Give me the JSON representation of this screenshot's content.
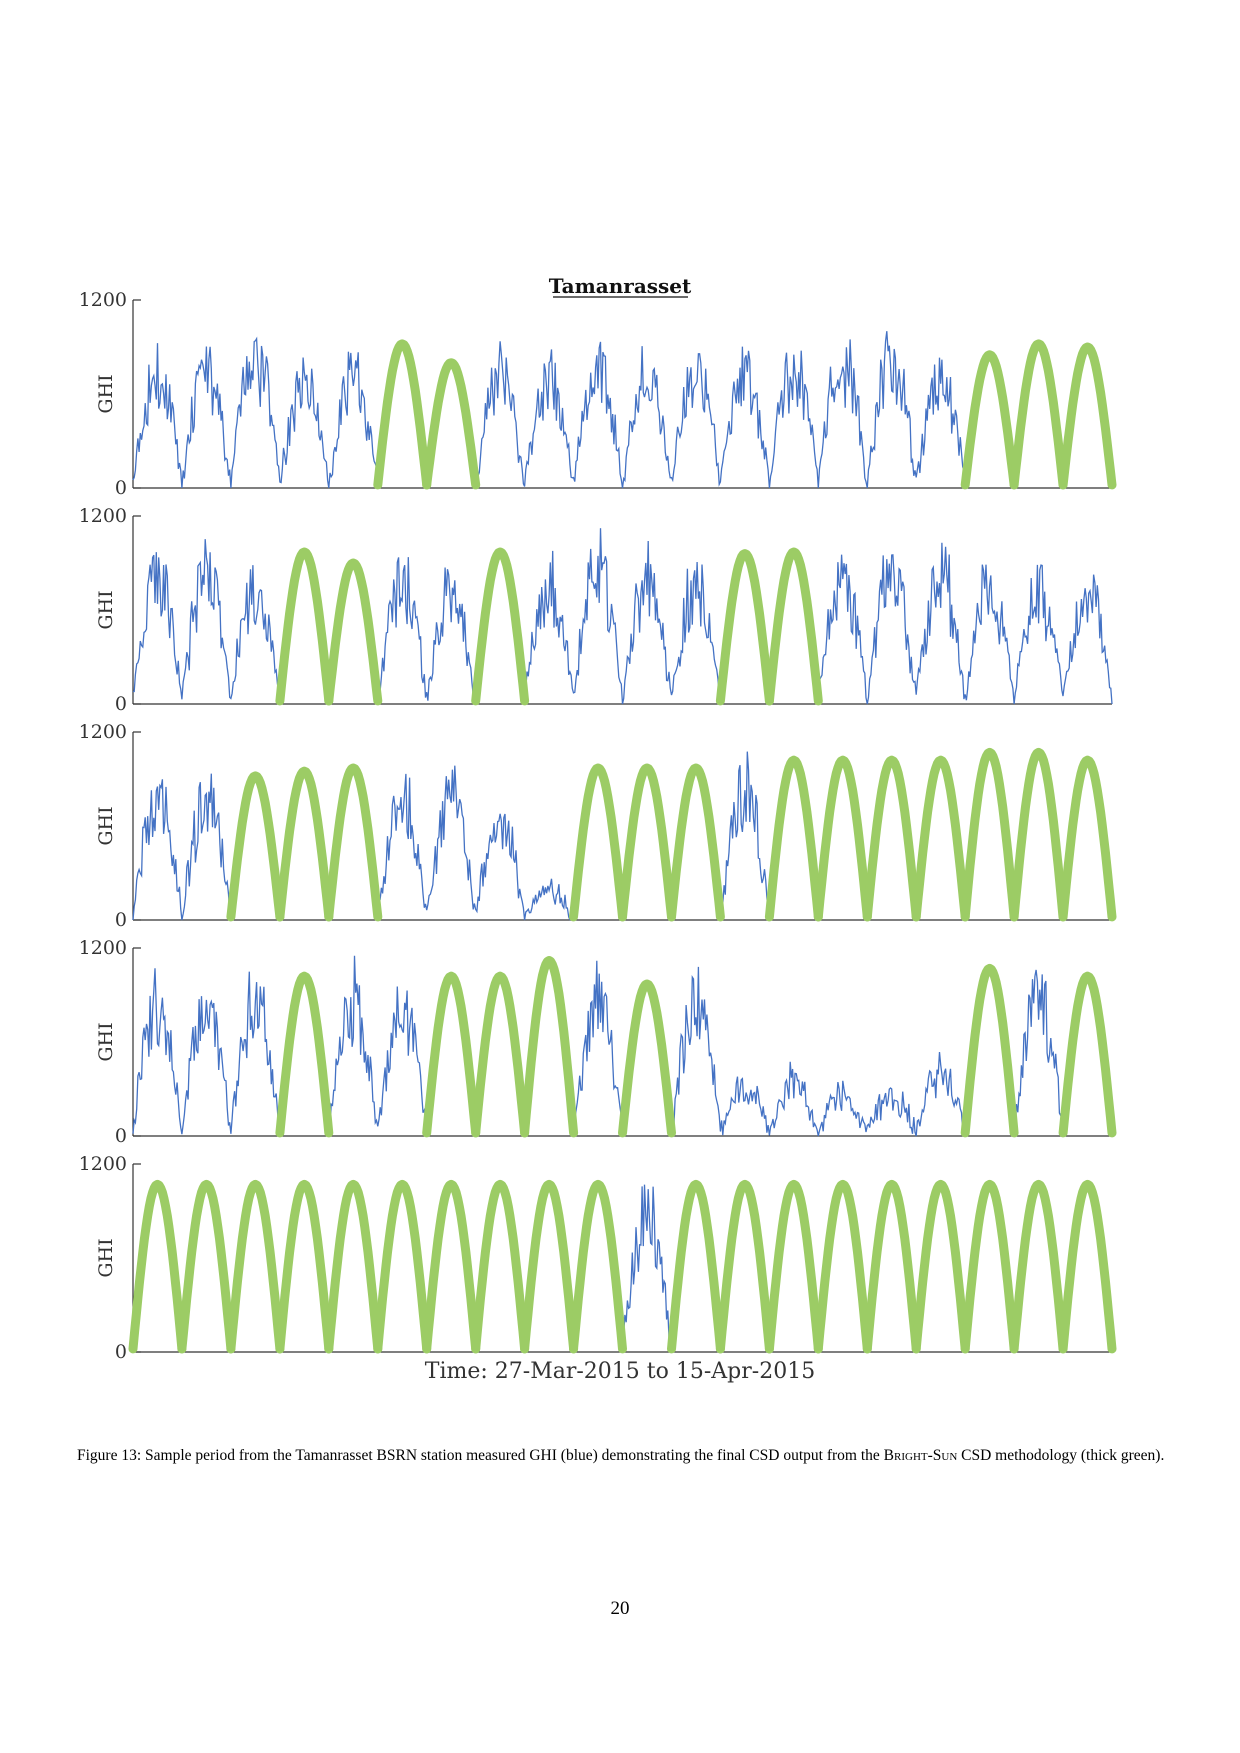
{
  "figure": {
    "number_label": "Figure 13:",
    "caption_before": "Sample period from the Tamanrasset BSRN station measured GHI (blue) demonstrating the final CSD output from the",
    "caption_method": "Bright-Sun",
    "caption_after": "CSD methodology (thick green).",
    "page_number": "20"
  },
  "chart_data": [
    {
      "type": "line",
      "title": "Tamanrasset",
      "ylabel": "GHI",
      "ylim": [
        0,
        1200
      ],
      "yticks": [
        "0",
        "1200"
      ],
      "colors": {
        "measured": "#4472c4",
        "clear_sky": "#9ccc65"
      },
      "days": 20,
      "peaks": [
        900,
        900,
        1000,
        800,
        830,
        900,
        780,
        900,
        820,
        900,
        900,
        900,
        850,
        920,
        1000,
        980,
        850,
        830,
        900,
        880
      ],
      "clear_sky_days": [
        5,
        6,
        17,
        18,
        19
      ]
    },
    {
      "type": "line",
      "ylabel": "GHI",
      "ylim": [
        0,
        1200
      ],
      "yticks": [
        "0",
        "1200"
      ],
      "colors": {
        "measured": "#4472c4",
        "clear_sky": "#9ccc65"
      },
      "days": 20,
      "peaks": [
        950,
        980,
        900,
        950,
        880,
        950,
        880,
        950,
        920,
        1050,
        950,
        900,
        940,
        950,
        950,
        1000,
        1000,
        900,
        880,
        900
      ],
      "clear_sky_days": [
        3,
        4,
        7,
        12,
        13
      ]
    },
    {
      "type": "line",
      "ylabel": "GHI",
      "ylim": [
        0,
        1200
      ],
      "yticks": [
        "0",
        "1200"
      ],
      "colors": {
        "measured": "#4472c4",
        "clear_sky": "#9ccc65"
      },
      "days": 20,
      "peaks": [
        900,
        880,
        900,
        930,
        950,
        900,
        900,
        750,
        200,
        950,
        950,
        950,
        1000,
        1000,
        1000,
        1000,
        1000,
        1050,
        1050,
        1000
      ],
      "clear_sky_days": [
        2,
        3,
        4,
        9,
        10,
        11,
        13,
        14,
        15,
        16,
        17,
        18,
        19
      ]
    },
    {
      "type": "line",
      "ylabel": "GHI",
      "ylim": [
        0,
        1200
      ],
      "yticks": [
        "0",
        "1200"
      ],
      "colors": {
        "measured": "#4472c4",
        "clear_sky": "#9ccc65"
      },
      "days": 20,
      "peaks": [
        1000,
        1000,
        1050,
        1000,
        1050,
        950,
        1000,
        1000,
        1100,
        1000,
        950,
        1000,
        350,
        400,
        300,
        300,
        450,
        1050,
        1050,
        1000
      ],
      "clear_sky_days": [
        3,
        6,
        7,
        8,
        10,
        17,
        19
      ]
    },
    {
      "type": "line",
      "ylabel": "GHI",
      "ylim": [
        0,
        1200
      ],
      "yticks": [
        "0",
        "1200"
      ],
      "colors": {
        "measured": "#4472c4",
        "clear_sky": "#9ccc65"
      },
      "days": 20,
      "peaks": [
        1050,
        1050,
        1050,
        1050,
        1050,
        1050,
        1050,
        1050,
        1050,
        1050,
        1050,
        1050,
        1050,
        1050,
        1050,
        1050,
        1050,
        1050,
        1050,
        1050
      ],
      "clear_sky_days": [
        0,
        1,
        2,
        3,
        4,
        5,
        6,
        7,
        8,
        9,
        11,
        12,
        13,
        14,
        15,
        16,
        17,
        18,
        19
      ],
      "xlabel": "Time: 27-Mar-2015 to 15-Apr-2015"
    }
  ]
}
